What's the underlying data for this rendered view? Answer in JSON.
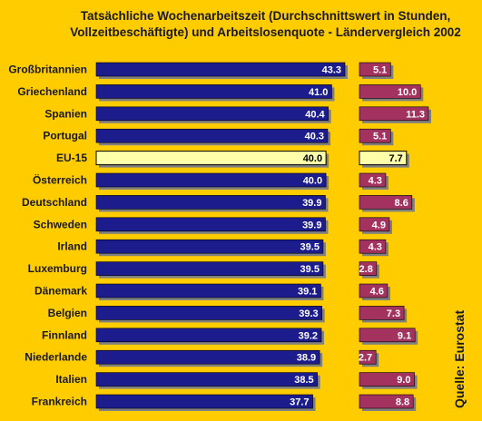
{
  "chart_data": {
    "type": "bar",
    "title_line1": "Tatsächliche Wochenarbeitszeit (Durchschnittswert in Stunden,",
    "title_line2": "Vollzeitbeschäftigte) und Arbeitslosenquote - Ländervergleich 2002",
    "source": "Quelle: Eurostat",
    "categories": [
      "Großbritannien",
      "Griechenland",
      "Spanien",
      "Portugal",
      "EU-15",
      "Österreich",
      "Deutschland",
      "Schweden",
      "Irland",
      "Luxemburg",
      "Dänemark",
      "Belgien",
      "Finnland",
      "Niederlande",
      "Italien",
      "Frankreich"
    ],
    "highlight_category": "EU-15",
    "series": [
      {
        "values": [
          43.3,
          41.0,
          40.4,
          40.3,
          40.0,
          40.0,
          39.9,
          39.9,
          39.5,
          39.5,
          39.1,
          39.3,
          39.2,
          38.9,
          38.5,
          37.7
        ],
        "labels": [
          "43.3",
          "41.0",
          "40.4",
          "40.3",
          "40.0",
          "40.0",
          "39.9",
          "39.9",
          "39.5",
          "39.5",
          "39.1",
          "39.3",
          "39.2",
          "38.9",
          "38.5",
          "37.7"
        ],
        "color": "#1C1C8C",
        "highlight_color": "#FFFFAA"
      },
      {
        "values": [
          5.1,
          10.0,
          11.3,
          5.1,
          7.7,
          4.3,
          8.6,
          4.9,
          4.3,
          2.8,
          4.6,
          7.3,
          9.1,
          2.7,
          9.0,
          8.8
        ],
        "labels": [
          "5.1",
          "10.0",
          "11.3",
          "5.1",
          "7.7",
          "4.3",
          "8.6",
          "4.9",
          "4.3",
          "2.8",
          "4.6",
          "7.3",
          "9.1",
          "2.7",
          "9.0",
          "8.8"
        ],
        "color": "#A3335E",
        "highlight_color": "#FFFFAA"
      }
    ],
    "colors": {
      "background": "#FFCC00",
      "shadow": "#808080"
    }
  }
}
